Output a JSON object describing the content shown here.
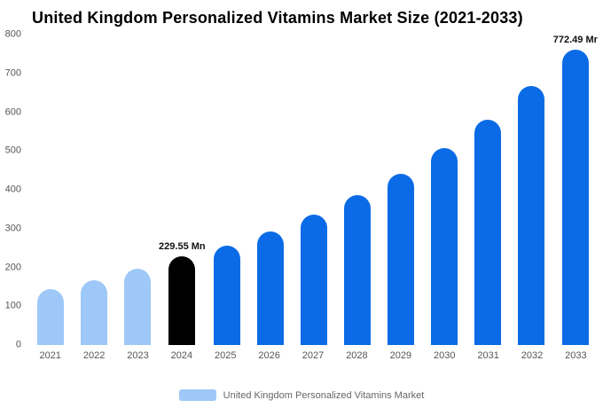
{
  "title": "United Kingdom Personalized Vitamins Market Size (2021-2033)",
  "colors": {
    "past": "#9ec8f7",
    "highlight": "#000000",
    "forecast": "#0b6be6",
    "axis_text": "#555555",
    "annotation_text": "#111111"
  },
  "legend": {
    "label": "United Kingdom Personalized Vitamins Market",
    "swatch_color": "#9ec8f7"
  },
  "chart_data": {
    "type": "bar",
    "title": "United Kingdom Personalized Vitamins Market Size (2021-2033)",
    "categories": [
      "2021",
      "2022",
      "2023",
      "2024",
      "2025",
      "2026",
      "2027",
      "2028",
      "2029",
      "2030",
      "2031",
      "2032",
      "2033"
    ],
    "values": [
      145,
      168,
      196,
      229.55,
      257,
      293,
      337,
      386,
      441,
      508,
      581,
      668,
      772.49
    ],
    "roles": [
      "past",
      "past",
      "past",
      "highlight",
      "forecast",
      "forecast",
      "forecast",
      "forecast",
      "forecast",
      "forecast",
      "forecast",
      "forecast",
      "forecast"
    ],
    "annotations": {
      "2024": "229.55 Mn",
      "2033": "772.49 Mr"
    },
    "xlabel": "",
    "ylabel": "",
    "ylim": [
      0,
      800
    ],
    "yticks": [
      0,
      100,
      200,
      300,
      400,
      500,
      600,
      700,
      800
    ],
    "grid": false,
    "legend_position": "bottom"
  }
}
